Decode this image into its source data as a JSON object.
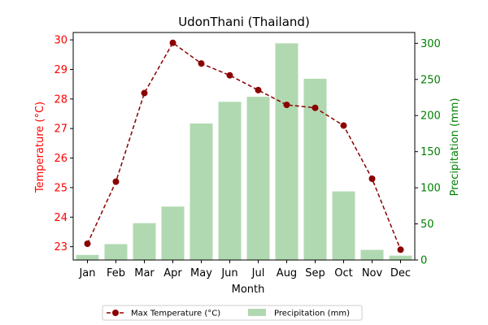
{
  "chart_data": {
    "type": "bar+line",
    "title": "UdonThani (Thailand)",
    "xlabel": "Month",
    "categories": [
      "Jan",
      "Feb",
      "Mar",
      "Apr",
      "May",
      "Jun",
      "Jul",
      "Aug",
      "Sep",
      "Oct",
      "Nov",
      "Dec"
    ],
    "left_axis": {
      "label": "Temperature (°C)",
      "ylim": [
        22.55,
        30.25
      ],
      "ticks": [
        23,
        24,
        25,
        26,
        27,
        28,
        29,
        30
      ],
      "color": "#ff0000"
    },
    "right_axis": {
      "label": "Precipitation (mm)",
      "ylim": [
        0,
        315
      ],
      "ticks": [
        0,
        50,
        100,
        150,
        200,
        250,
        300
      ],
      "color": "#008000"
    },
    "series": [
      {
        "name": "Max Temperature (°C)",
        "kind": "line",
        "axis": "left",
        "color": "#8b0000",
        "style": "dashed",
        "marker": "circle",
        "values": [
          23.1,
          25.2,
          28.2,
          29.9,
          29.2,
          28.8,
          28.3,
          27.8,
          27.7,
          27.1,
          25.3,
          22.9
        ]
      },
      {
        "name": "Precipitation (mm)",
        "kind": "bar",
        "axis": "right",
        "color": "#b1d9b1",
        "values": [
          7,
          22,
          51,
          74,
          189,
          219,
          226,
          300,
          251,
          95,
          14,
          6
        ]
      }
    ],
    "legend": "bottom-center"
  }
}
